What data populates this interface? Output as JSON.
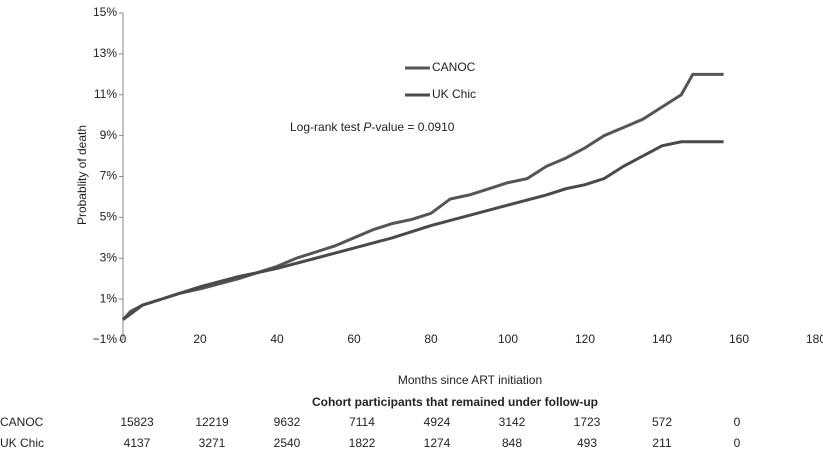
{
  "chart_data": {
    "type": "line",
    "y_label": "Probablity of death",
    "x_label": "Months since ART initiation",
    "annotation": [
      "Log-rank test ",
      "P",
      "-value  = 0.0910"
    ],
    "xlim": [
      0,
      180
    ],
    "xticks": [
      0,
      20,
      40,
      60,
      80,
      100,
      120,
      140,
      160,
      180
    ],
    "ylim": [
      -1,
      15
    ],
    "yticks": [
      {
        "value": -1,
        "label": "−1%"
      },
      {
        "value": 1,
        "label": "1%"
      },
      {
        "value": 3,
        "label": "3%"
      },
      {
        "value": 5,
        "label": "5%"
      },
      {
        "value": 7,
        "label": "7%"
      },
      {
        "value": 9,
        "label": "9%"
      },
      {
        "value": 11,
        "label": "11%"
      },
      {
        "value": 13,
        "label": "13%"
      },
      {
        "value": 15,
        "label": "15%"
      }
    ],
    "grid": false,
    "series": [
      {
        "name": "CANOC",
        "color": "#555555",
        "x": [
          0,
          2,
          5,
          10,
          15,
          20,
          30,
          40,
          45,
          50,
          55,
          60,
          65,
          70,
          75,
          80,
          85,
          90,
          95,
          100,
          105,
          110,
          115,
          120,
          125,
          130,
          135,
          140,
          145,
          148,
          156
        ],
        "values": [
          0,
          0.4,
          0.7,
          1.0,
          1.3,
          1.5,
          2.0,
          2.6,
          3.0,
          3.3,
          3.6,
          4.0,
          4.4,
          4.7,
          4.9,
          5.2,
          5.9,
          6.1,
          6.4,
          6.7,
          6.9,
          7.5,
          7.9,
          8.4,
          9.0,
          9.4,
          9.8,
          10.4,
          11.0,
          12.0,
          12.0
        ]
      },
      {
        "name": "UK Chic",
        "color": "#4a4a4a",
        "x": [
          0,
          5,
          10,
          20,
          30,
          40,
          50,
          60,
          70,
          80,
          90,
          100,
          110,
          115,
          120,
          125,
          130,
          135,
          140,
          145,
          156
        ],
        "values": [
          0,
          0.7,
          1.0,
          1.6,
          2.1,
          2.5,
          3.0,
          3.5,
          4.0,
          4.6,
          5.1,
          5.6,
          6.1,
          6.4,
          6.6,
          6.9,
          7.5,
          8.0,
          8.5,
          8.7,
          8.7
        ]
      }
    ]
  },
  "table": {
    "title": "Cohort participants that remained under follow-up",
    "rows": [
      {
        "label": "CANOC",
        "values": [
          15823,
          12219,
          9632,
          7114,
          4924,
          3142,
          1723,
          572,
          0
        ]
      },
      {
        "label": "UK Chic",
        "values": [
          4137,
          3271,
          2540,
          1822,
          1274,
          848,
          493,
          211,
          0
        ]
      }
    ]
  }
}
